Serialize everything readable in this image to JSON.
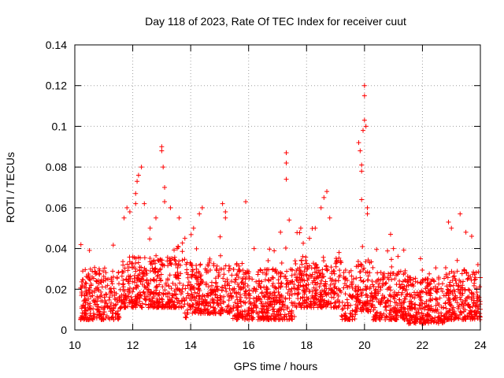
{
  "chart_data": {
    "type": "scatter",
    "title": "Day 118 of 2023, Rate Of TEC Index for receiver cuut",
    "xlabel": "GPS time / hours",
    "ylabel": "ROTI / TECUs",
    "xlim": [
      10,
      24
    ],
    "ylim": [
      0,
      0.14
    ],
    "xticks": [
      {
        "value": 10,
        "label": "10"
      },
      {
        "value": 12,
        "label": "12"
      },
      {
        "value": 14,
        "label": "14"
      },
      {
        "value": 16,
        "label": "16"
      },
      {
        "value": 18,
        "label": "18"
      },
      {
        "value": 20,
        "label": "20"
      },
      {
        "value": 22,
        "label": "22"
      },
      {
        "value": 24,
        "label": "24"
      }
    ],
    "yticks": [
      {
        "value": 0,
        "label": "0"
      },
      {
        "value": 0.02,
        "label": "0.02"
      },
      {
        "value": 0.04,
        "label": "0.04"
      },
      {
        "value": 0.06,
        "label": "0.06"
      },
      {
        "value": 0.08,
        "label": "0.08"
      },
      {
        "value": 0.1,
        "label": "0.1"
      },
      {
        "value": 0.12,
        "label": "0.12"
      },
      {
        "value": 0.14,
        "label": "0.14"
      }
    ],
    "grid": true,
    "marker": "+",
    "marker_color": "#ff0000",
    "series": [
      {
        "name": "ROTI",
        "x_range": [
          10.2,
          24.0
        ],
        "typical_range": [
          0.005,
          0.03
        ],
        "points": [
          [
            11.7,
            0.055
          ],
          [
            11.8,
            0.06
          ],
          [
            11.9,
            0.058
          ],
          [
            12.1,
            0.062
          ],
          [
            12.1,
            0.067
          ],
          [
            12.15,
            0.073
          ],
          [
            12.2,
            0.076
          ],
          [
            12.3,
            0.08
          ],
          [
            12.4,
            0.062
          ],
          [
            12.6,
            0.05
          ],
          [
            12.8,
            0.055
          ],
          [
            13.0,
            0.09
          ],
          [
            13.0,
            0.088
          ],
          [
            13.05,
            0.08
          ],
          [
            13.1,
            0.07
          ],
          [
            13.1,
            0.063
          ],
          [
            13.3,
            0.06
          ],
          [
            13.6,
            0.055
          ],
          [
            13.8,
            0.045
          ],
          [
            14.1,
            0.05
          ],
          [
            14.3,
            0.057
          ],
          [
            14.4,
            0.06
          ],
          [
            15.1,
            0.062
          ],
          [
            15.2,
            0.058
          ],
          [
            15.2,
            0.055
          ],
          [
            15.9,
            0.063
          ],
          [
            17.1,
            0.048
          ],
          [
            17.3,
            0.087
          ],
          [
            17.3,
            0.082
          ],
          [
            17.3,
            0.074
          ],
          [
            17.4,
            0.054
          ],
          [
            17.8,
            0.05
          ],
          [
            18.1,
            0.045
          ],
          [
            18.3,
            0.05
          ],
          [
            18.5,
            0.06
          ],
          [
            18.6,
            0.065
          ],
          [
            18.7,
            0.068
          ],
          [
            18.8,
            0.055
          ],
          [
            19.8,
            0.092
          ],
          [
            19.85,
            0.088
          ],
          [
            19.9,
            0.081
          ],
          [
            19.9,
            0.078
          ],
          [
            19.9,
            0.064
          ],
          [
            19.95,
            0.098
          ],
          [
            20.0,
            0.12
          ],
          [
            20.0,
            0.115
          ],
          [
            20.0,
            0.103
          ],
          [
            20.05,
            0.1
          ],
          [
            20.1,
            0.057
          ],
          [
            20.1,
            0.06
          ],
          [
            20.9,
            0.047
          ],
          [
            21.0,
            0.04
          ],
          [
            22.9,
            0.053
          ],
          [
            23.0,
            0.05
          ],
          [
            23.3,
            0.057
          ],
          [
            23.5,
            0.048
          ],
          [
            23.7,
            0.046
          ]
        ]
      }
    ]
  }
}
